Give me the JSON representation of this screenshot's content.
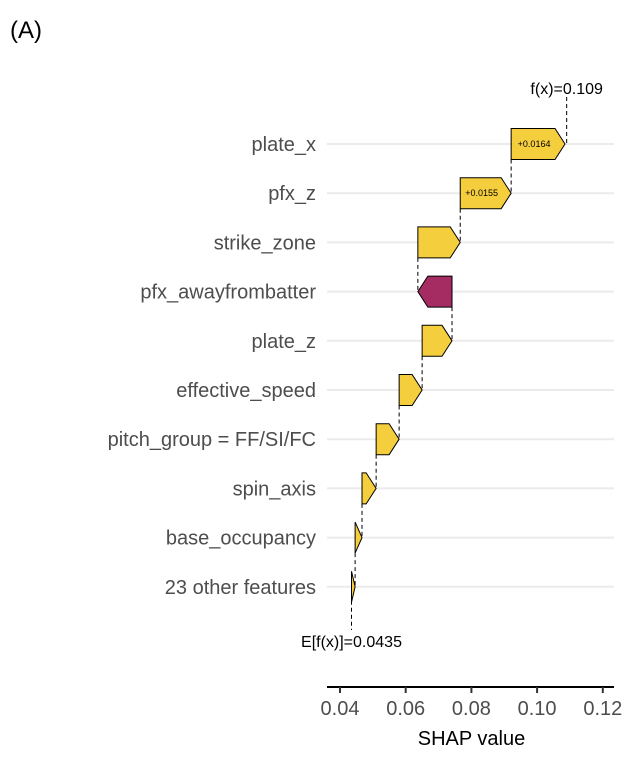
{
  "chart_data": {
    "type": "waterfall",
    "panel_label": "(A)",
    "title": "",
    "xlabel": "SHAP value",
    "ylabel": "",
    "xlim": [
      0.037,
      0.123
    ],
    "xticks": [
      0.04,
      0.06,
      0.08,
      0.1,
      0.12
    ],
    "xtick_labels": [
      "0.04",
      "0.06",
      "0.08",
      "0.10",
      "0.12"
    ],
    "grid": "horizontal",
    "baseline": 0.0435,
    "baseline_label": "E[f(x)]=0.0435",
    "prediction": 0.109,
    "prediction_label": "f(x)=0.109",
    "colors": {
      "positive": "#F5CE3E",
      "negative": "#A42C62"
    },
    "features": [
      {
        "name": "plate_x",
        "value": 0.0164,
        "label": "+0.0164"
      },
      {
        "name": "pfx_z",
        "value": 0.0155,
        "label": "+0.0155"
      },
      {
        "name": "strike_zone",
        "value": 0.0129,
        "label": ""
      },
      {
        "name": "pfx_awayfrombatter",
        "value": -0.0104,
        "label": ""
      },
      {
        "name": "plate_z",
        "value": 0.0091,
        "label": ""
      },
      {
        "name": "effective_speed",
        "value": 0.007,
        "label": ""
      },
      {
        "name": "pitch_group = FF/SI/FC",
        "value": 0.007,
        "label": ""
      },
      {
        "name": "spin_axis",
        "value": 0.0043,
        "label": ""
      },
      {
        "name": "base_occupancy",
        "value": 0.0021,
        "label": ""
      },
      {
        "name": "23 other features",
        "value": 0.0011,
        "label": ""
      }
    ]
  }
}
